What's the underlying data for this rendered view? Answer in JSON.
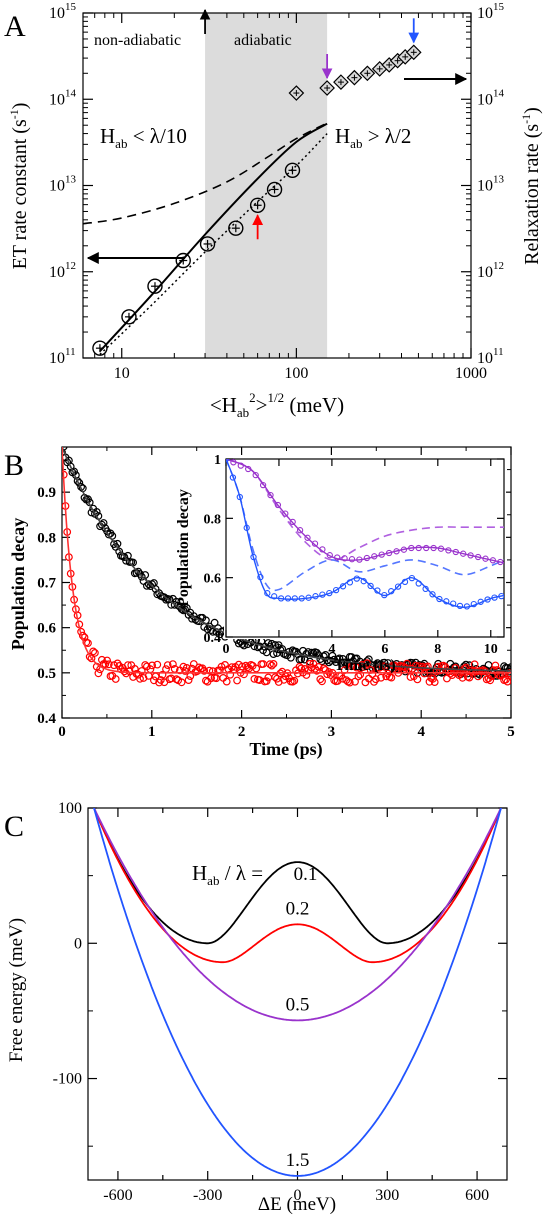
{
  "chart_data": [
    {
      "panel_label": "A",
      "type": "scatter",
      "x_scale": "log",
      "y_scale": "log",
      "xlim": [
        6,
        1000
      ],
      "ylim": [
        100000000000.0,
        1000000000000000.0
      ],
      "xlabel_parts": {
        "pre": "<H",
        "sub": "ab",
        "sup": "2",
        "mid": ">",
        "sup2": "1/2",
        "post": " (meV)"
      },
      "ylabel_left": "ET rate constant (s",
      "ylabel_left_sup": "-1",
      "ylabel_left_end": ")",
      "ylabel_right": "Relaxation rate (s",
      "ylabel_right_sup": "-1",
      "ylabel_right_end": ")",
      "x_ticks": [
        {
          "v": 10,
          "label": "10"
        },
        {
          "v": 100,
          "label": "100"
        },
        {
          "v": 1000,
          "label": "1000"
        }
      ],
      "y_ticks": [
        {
          "v": 100000000000.0,
          "base": "10",
          "exp": "11"
        },
        {
          "v": 1000000000000.0,
          "base": "10",
          "exp": "12"
        },
        {
          "v": 10000000000000.0,
          "base": "10",
          "exp": "13"
        },
        {
          "v": 100000000000000.0,
          "base": "10",
          "exp": "14"
        },
        {
          "v": 1000000000000000.0,
          "base": "10",
          "exp": "15"
        }
      ],
      "shaded_region": [
        30,
        150
      ],
      "region_labels": {
        "left": "non-adiabatic",
        "middle": "adiabatic"
      },
      "condition_left": {
        "pre": "H",
        "sub": "ab",
        "post": " < λ/10"
      },
      "condition_right": {
        "pre": "H",
        "sub": "ab",
        "post": " > λ/2"
      },
      "et_points": {
        "x": [
          7.5,
          11,
          15.5,
          22.5,
          31,
          45,
          60,
          75,
          95
        ],
        "y": [
          130000000000.0,
          300000000000.0,
          680000000000.0,
          1350000000000.0,
          2100000000000.0,
          3200000000000.0,
          5900000000000.0,
          9000000000000.0,
          15000000000000.0
        ]
      },
      "relax_points": {
        "x": [
          100,
          150,
          180,
          215,
          255,
          300,
          340,
          380,
          420,
          470
        ],
        "y": [
          118000000000000.0,
          135000000000000.0,
          158000000000000.0,
          178000000000000.0,
          200000000000000.0,
          225000000000000.0,
          250000000000000.0,
          280000000000000.0,
          310000000000000.0,
          350000000000000.0
        ]
      },
      "solid_curve": {
        "x": [
          7.5,
          15,
          30,
          60,
          100,
          150
        ],
        "y": [
          120000000000.0,
          550000000000.0,
          2700000000000.0,
          12000000000000.0,
          32000000000000.0,
          52000000000000.0
        ]
      },
      "dashed_curve": {
        "x": [
          6,
          10,
          20,
          40,
          70,
          100,
          150
        ],
        "y": [
          3600000000000.0,
          4200000000000.0,
          6200000000000.0,
          11000000000000.0,
          22000000000000.0,
          35000000000000.0,
          53000000000000.0
        ]
      },
      "dotted_curve": {
        "x": [
          7.5,
          15,
          30,
          60,
          100,
          150
        ],
        "y": [
          110000000000.0,
          420000000000.0,
          1700000000000.0,
          6500000000000.0,
          17000000000000.0,
          40000000000000.0
        ]
      },
      "arrows": [
        {
          "x": 30,
          "color": "#000000"
        },
        {
          "x": 60,
          "color": "#ff0000"
        },
        {
          "x": 150,
          "color": "#9933cc"
        },
        {
          "x": 470,
          "color": "#2255ff"
        }
      ]
    },
    {
      "panel_label": "B",
      "type": "scatter",
      "xlim": [
        0,
        5
      ],
      "ylim": [
        0.4,
        1.0
      ],
      "xlabel": "Time (ps)",
      "ylabel": "Population decay",
      "x_ticks": [
        0,
        1,
        2,
        3,
        4,
        5
      ],
      "y_ticks": [
        0.4,
        0.5,
        0.6,
        0.7,
        0.8,
        0.9
      ],
      "series": [
        {
          "color": "#000000",
          "fit": {
            "a": 0.5,
            "tau": 1.05
          },
          "noise": 0.012
        },
        {
          "color": "#ff0000",
          "fit": {
            "a": 0.5,
            "tau": 0.12
          },
          "noise": 0.018
        }
      ],
      "inset": {
        "xlim": [
          0,
          10.5
        ],
        "ylim": [
          0.4,
          1.0
        ],
        "xlabel": "Time (fs)",
        "ylabel": "Population decay",
        "x_ticks": [
          0,
          2,
          4,
          6,
          8,
          10
        ],
        "y_ticks": [
          0.4,
          0.6,
          0.8,
          1.0
        ],
        "y_tick_labels": [
          "0.4",
          "0.6",
          "0.8",
          "1"
        ],
        "purple_points": {
          "x": [
            0,
            1,
            2,
            3,
            4,
            5,
            6,
            7,
            8,
            9,
            10.5
          ],
          "y": [
            1.0,
            0.96,
            0.84,
            0.74,
            0.67,
            0.66,
            0.68,
            0.7,
            0.7,
            0.68,
            0.65
          ]
        },
        "purple_dashed": {
          "x": [
            0,
            1,
            2,
            3,
            4,
            5,
            6,
            7,
            8,
            9,
            10.5
          ],
          "y": [
            1.0,
            0.96,
            0.83,
            0.72,
            0.66,
            0.7,
            0.74,
            0.76,
            0.77,
            0.77,
            0.77
          ]
        },
        "blue_points": {
          "x": [
            0,
            0.5,
            1.0,
            1.5,
            2,
            3,
            4,
            5,
            6,
            7,
            8,
            9,
            10,
            10.5
          ],
          "y": [
            1.0,
            0.88,
            0.68,
            0.55,
            0.53,
            0.53,
            0.55,
            0.6,
            0.54,
            0.6,
            0.53,
            0.5,
            0.53,
            0.54
          ]
        },
        "blue_dashed": {
          "x": [
            0,
            0.5,
            1.0,
            1.5,
            2,
            3,
            4,
            5,
            6,
            7,
            8,
            9,
            10,
            10.5
          ],
          "y": [
            1.0,
            0.88,
            0.7,
            0.58,
            0.56,
            0.62,
            0.66,
            0.62,
            0.64,
            0.66,
            0.64,
            0.61,
            0.64,
            0.66
          ]
        }
      }
    },
    {
      "panel_label": "C",
      "type": "line",
      "xlim": [
        -700,
        700
      ],
      "ylim": [
        -175,
        100
      ],
      "xlabel": "ΔE (meV)",
      "ylabel": "Free energy (meV)",
      "x_ticks": [
        -600,
        -300,
        0,
        300,
        600
      ],
      "y_ticks": [
        -100,
        0,
        100
      ],
      "heading": {
        "pre": "H",
        "sub": "ab",
        "post": " / λ = "
      },
      "series": [
        {
          "label": "0.1",
          "color": "#000000",
          "min_value": 0,
          "center_value": 60,
          "x_min": 300
        },
        {
          "label": "0.2",
          "color": "#ff0000",
          "min_value": -14,
          "center_value": 14,
          "x_min": 250
        },
        {
          "label": "0.5",
          "color": "#9933cc",
          "min_value": -57,
          "center_value": -57,
          "x_min": 0
        },
        {
          "label": "1.5",
          "color": "#2255ff",
          "min_value": -172,
          "center_value": -172,
          "x_min": 0
        }
      ]
    }
  ]
}
